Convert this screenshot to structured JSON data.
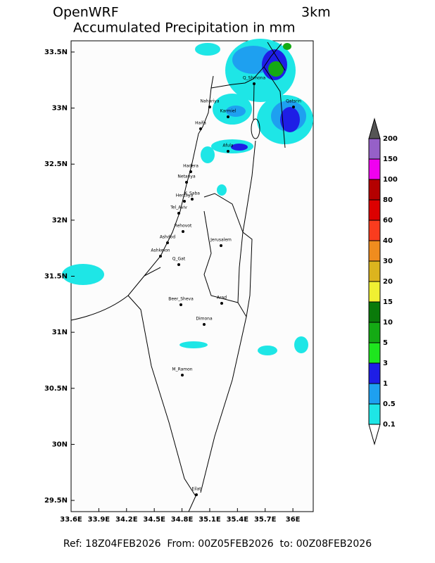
{
  "header": {
    "model": "OpenWRF",
    "resolution": "3km",
    "title": "Accumulated Precipitation in mm"
  },
  "map": {
    "lon_lim": [
      33.6,
      36.22
    ],
    "lat_lim": [
      29.4,
      33.6
    ],
    "lon_ticks": [
      {
        "value": 33.6,
        "label": "33.6E"
      },
      {
        "value": 33.9,
        "label": "33.9E"
      },
      {
        "value": 34.2,
        "label": "34.2E"
      },
      {
        "value": 34.5,
        "label": "34.5E"
      },
      {
        "value": 34.8,
        "label": "34.8E"
      },
      {
        "value": 35.1,
        "label": "35.1E"
      },
      {
        "value": 35.4,
        "label": "35.4E"
      },
      {
        "value": 35.7,
        "label": "35.7E"
      },
      {
        "value": 36,
        "label": "36E"
      }
    ],
    "lat_ticks": [
      {
        "value": 29.5,
        "label": "29.5N"
      },
      {
        "value": 30,
        "label": "30N"
      },
      {
        "value": 30.5,
        "label": "30.5N"
      },
      {
        "value": 31,
        "label": "31N"
      },
      {
        "value": 31.5,
        "label": "31.5N"
      },
      {
        "value": 32,
        "label": "32N"
      },
      {
        "value": 32.5,
        "label": "32.5N"
      },
      {
        "value": 33,
        "label": "33N"
      },
      {
        "value": 33.5,
        "label": "33.5N"
      }
    ],
    "cities": [
      "Q_Shmona",
      "Nahariya",
      "Karmiel",
      "Qatsrin",
      "Haifa",
      "Afula",
      "Hadera",
      "Netanya",
      "K_Saba",
      "Herzliya",
      "Tel_Aviv",
      "Rehovot",
      "Ashdod",
      "Ashkelon",
      "Jerusalem",
      "Q_Gat",
      "Beer_Sheva",
      "Arad",
      "Dimona",
      "M_Ramon",
      "Eilat"
    ]
  },
  "colorbar": {
    "levels": [
      0.1,
      0.5,
      1,
      3,
      5,
      10,
      15,
      20,
      30,
      40,
      60,
      80,
      100,
      150,
      200
    ],
    "colors": [
      "#1ee6e6",
      "#1ea0f0",
      "#1e1ee6",
      "#1ee61e",
      "#14aa14",
      "#0a7a0a",
      "#f0f032",
      "#dcb41e",
      "#f08c1e",
      "#fa3c1e",
      "#dc0000",
      "#b40000",
      "#f000f0",
      "#9660c8"
    ]
  },
  "footer": {
    "text": "Ref: 18Z04FEB2026  From: 00Z05FEB2026  to: 00Z08FEB2026"
  }
}
